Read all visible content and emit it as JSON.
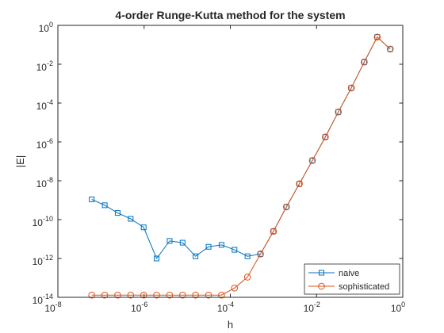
{
  "chart_data": {
    "type": "line",
    "title": "4-order Runge-Kutta method for the system",
    "xlabel": "h",
    "ylabel": "|E|",
    "x_scale": "log",
    "y_scale": "log",
    "xlim": [
      1e-08,
      1
    ],
    "ylim": [
      1e-14,
      1
    ],
    "grid": false,
    "legend_position": "bottom-right",
    "x_ticks": [
      {
        "value": 1e-08,
        "base": "10",
        "exp": "-8"
      },
      {
        "value": 1e-06,
        "base": "10",
        "exp": "-6"
      },
      {
        "value": 0.0001,
        "base": "10",
        "exp": "-4"
      },
      {
        "value": 0.01,
        "base": "10",
        "exp": "-2"
      },
      {
        "value": 1,
        "base": "10",
        "exp": "0"
      }
    ],
    "y_ticks": [
      {
        "value": 1e-14,
        "base": "10",
        "exp": "-14"
      },
      {
        "value": 1e-12,
        "base": "10",
        "exp": "-12"
      },
      {
        "value": 1e-10,
        "base": "10",
        "exp": "-10"
      },
      {
        "value": 1e-08,
        "base": "10",
        "exp": "-8"
      },
      {
        "value": 1e-06,
        "base": "10",
        "exp": "-6"
      },
      {
        "value": 0.0001,
        "base": "10",
        "exp": "-4"
      },
      {
        "value": 0.01,
        "base": "10",
        "exp": "-2"
      },
      {
        "value": 1,
        "base": "10",
        "exp": "0"
      }
    ],
    "x": [
      6.1e-07,
      1.22e-06,
      2.44e-06,
      4.88e-06,
      9.77e-06,
      1.95e-05,
      3.91e-05,
      7.81e-05,
      0.000156,
      0.000313,
      0.000625,
      0.00125,
      0.0025,
      0.005,
      0.01,
      0.02,
      0.04,
      0.08,
      0.16,
      0.32,
      0.64
    ],
    "series": [
      {
        "name": "naive",
        "color": "#0072BD",
        "marker": "square",
        "x": [
          6.1e-08,
          1.22e-07,
          2.44e-07,
          4.88e-07,
          9.77e-07,
          1.95e-06,
          3.91e-06,
          7.81e-06,
          1.56e-05,
          3.13e-05,
          6.25e-05,
          0.000125,
          0.00025,
          0.0005,
          0.001,
          0.002,
          0.004,
          0.008,
          0.016,
          0.032,
          0.064,
          0.128,
          0.256,
          0.512
        ],
        "values": [
          1.1e-09,
          5.5e-10,
          2.2e-10,
          1.1e-10,
          4e-11,
          1e-12,
          8e-12,
          6.5e-12,
          1.3e-12,
          4e-12,
          5e-12,
          2.8e-12,
          1.3e-12,
          1.7e-12,
          2.5e-11,
          4.5e-10,
          7e-09,
          1.1e-07,
          1.8e-06,
          3.5e-05,
          0.0006,
          0.013,
          0.25,
          0.06
        ]
      },
      {
        "name": "sophisticated",
        "color": "#D95319",
        "marker": "circle",
        "x": [
          6.1e-08,
          1.22e-07,
          2.44e-07,
          4.88e-07,
          9.77e-07,
          1.95e-06,
          3.91e-06,
          7.81e-06,
          1.56e-05,
          3.13e-05,
          6.25e-05,
          0.000125,
          0.00025,
          0.0005,
          0.001,
          0.002,
          0.004,
          0.008,
          0.016,
          0.032,
          0.064,
          0.128,
          0.256,
          0.512
        ],
        "values": [
          1.3e-14,
          1.3e-14,
          1.3e-14,
          1.3e-14,
          1.3e-14,
          1.3e-14,
          1.3e-14,
          1.3e-14,
          1.3e-14,
          1.3e-14,
          1.3e-14,
          3e-14,
          1.1e-13,
          1.7e-12,
          2.5e-11,
          4.5e-10,
          7e-09,
          1.1e-07,
          1.8e-06,
          3.5e-05,
          0.0006,
          0.013,
          0.25,
          0.06
        ]
      }
    ]
  }
}
